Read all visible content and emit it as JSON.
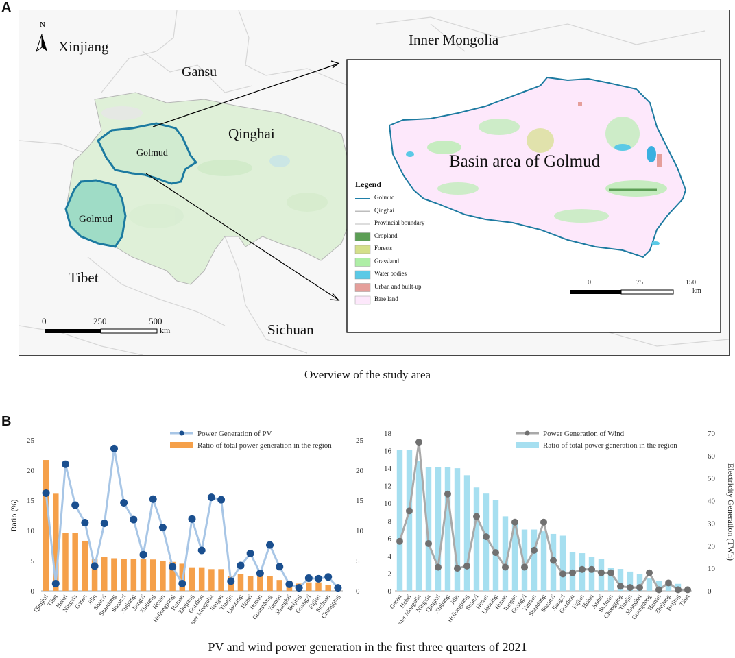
{
  "panel_a": {
    "letter": "A",
    "caption": "Overview of the study area",
    "north": "N",
    "regions": {
      "xinjiang": "Xinjiang",
      "gansu": "Gansu",
      "inner_mongolia": "Inner Mongolia",
      "qinghai": "Qinghai",
      "tibet": "Tibet",
      "sichuan": "Sichuan",
      "golmud_north": "Golmud",
      "golmud_south": "Golmud"
    },
    "inset_title": "Basin area of Golmud",
    "legend": {
      "title": "Legend",
      "items": [
        {
          "label": "Golmud",
          "kind": "line",
          "color": "#1f7fa8"
        },
        {
          "label": "Qinghai",
          "kind": "line",
          "color": "#bdbdbd"
        },
        {
          "label": "Provincial boundary",
          "kind": "line",
          "color": "#dddddd"
        },
        {
          "label": "Cropland",
          "kind": "box",
          "color": "#5c9e55"
        },
        {
          "label": "Forests",
          "kind": "box",
          "color": "#d4e08a"
        },
        {
          "label": "Grassland",
          "kind": "box",
          "color": "#aeeea6"
        },
        {
          "label": "Water bodies",
          "kind": "box",
          "color": "#5bc9e6"
        },
        {
          "label": "Urban and built-up",
          "kind": "box",
          "color": "#e59f9b"
        },
        {
          "label": "Bare land",
          "kind": "box",
          "color": "#fde8fb"
        }
      ]
    },
    "scale_main": {
      "ticks": [
        "0",
        "250",
        "500"
      ],
      "unit": "km"
    },
    "scale_inset": {
      "ticks": [
        "0",
        "75",
        "150"
      ],
      "unit": "km"
    }
  },
  "panel_b": {
    "letter": "B",
    "caption": "PV and wind power generation in the first three quarters of 2021"
  },
  "chart_data": [
    {
      "type": "bar",
      "title": "",
      "ylabel": "Ratio (%)",
      "ylim": [
        0,
        25
      ],
      "y2lim": [
        0,
        25
      ],
      "yticks": [
        0,
        5,
        10,
        15,
        20,
        25
      ],
      "y2ticks": [
        0,
        5,
        10,
        15,
        20,
        25
      ],
      "legend_position": "top-right",
      "categories": [
        "Qinghai",
        "Tibet",
        "Hebei",
        "Ningxia",
        "Gansu",
        "Jilin",
        "Shanxi",
        "Shandong",
        "Shaanxi",
        "Xinjiang",
        "Jiangxi",
        "Xinjiang",
        "Henan",
        "Heilongjiang",
        "Hainan",
        "Zhejiang",
        "Guizhou",
        "Inner Mongolia",
        "Jiangsu",
        "Tianjin",
        "Liaoning",
        "Hubei",
        "Hunan",
        "Guangdong",
        "Yunnan",
        "Shanghai",
        "Beijing",
        "Guangxi",
        "Fujian",
        "Sichuan",
        "Chongqing"
      ],
      "series": [
        {
          "name": "Ratio of total power generation in the region",
          "kind": "bar",
          "axis": "left",
          "color": "#f5a04a",
          "values": [
            21.7,
            16.1,
            9.6,
            9.6,
            8.3,
            5.3,
            5.6,
            5.4,
            5.3,
            5.3,
            5.3,
            5.2,
            5.0,
            4.8,
            4.5,
            3.9,
            3.9,
            3.6,
            3.6,
            2.5,
            2.8,
            2.5,
            2.5,
            2.5,
            1.8,
            1.7,
            1.2,
            1.4,
            1.4,
            1.0,
            0.8
          ]
        },
        {
          "name": "Power Generation of PV",
          "kind": "line",
          "axis": "right",
          "color": "#a8c6e6",
          "marker_color": "#1a4f8f",
          "values": [
            16.2,
            1.2,
            21.0,
            14.2,
            11.3,
            4.1,
            11.2,
            23.6,
            14.6,
            11.8,
            6.0,
            15.2,
            10.5,
            4.0,
            1.2,
            11.9,
            6.7,
            15.5,
            15.1,
            1.6,
            4.2,
            6.2,
            2.9,
            7.6,
            4.0,
            1.1,
            0.5,
            2.1,
            2.0,
            2.3,
            0.5
          ]
        }
      ]
    },
    {
      "type": "bar",
      "title": "",
      "ylabel": "Electricity Generation (TWh)",
      "ylim": [
        0,
        18
      ],
      "y2lim": [
        0,
        70
      ],
      "yticks": [
        0,
        2,
        4,
        6,
        8,
        10,
        12,
        14,
        16,
        18
      ],
      "y2ticks": [
        0,
        10,
        20,
        30,
        40,
        50,
        60,
        70
      ],
      "legend_position": "top-right",
      "categories": [
        "Gansu",
        "Hebei",
        "Inner Mongolia",
        "Ningxia",
        "Qinghai",
        "Xinjiang",
        "Jilin",
        "Heilongjiang",
        "Shanxi",
        "Henan",
        "Liaoning",
        "Hunan",
        "Jiangsu",
        "Guangxi",
        "Yunnan",
        "Shandong",
        "Shaanxi",
        "Jiangxi",
        "Guizhou",
        "Fujian",
        "Hubei",
        "Anhui",
        "Sichuan",
        "Chongqing",
        "Tianjin",
        "Shanghai",
        "Guangdong",
        "Hainan",
        "Zhejiang",
        "Beijing",
        "Tibet"
      ],
      "series": [
        {
          "name": "Ratio of total power generation in the region",
          "kind": "bar",
          "axis": "left",
          "color": "#a6dff0",
          "values": [
            16.1,
            16.1,
            14.8,
            14.1,
            14.1,
            14.1,
            14.0,
            13.2,
            11.8,
            11.1,
            10.4,
            8.5,
            8.1,
            7.0,
            7.0,
            6.8,
            6.5,
            6.3,
            4.4,
            4.3,
            3.9,
            3.6,
            2.6,
            2.5,
            2.2,
            1.9,
            1.4,
            1.1,
            0.9,
            0.8,
            0.0
          ]
        },
        {
          "name": "Power Generation of Wind",
          "kind": "line",
          "axis": "right",
          "color": "#a9a9a9",
          "marker_color": "#707070",
          "values": [
            22,
            35.5,
            66,
            21,
            10.5,
            43,
            10,
            11,
            33,
            24,
            17,
            10.5,
            30.5,
            10.5,
            18,
            30.5,
            13.5,
            7.5,
            8,
            9.5,
            9.5,
            8,
            8,
            2,
            1.5,
            1.5,
            8,
            0.5,
            3.5,
            0.5,
            0.5
          ]
        }
      ]
    }
  ]
}
